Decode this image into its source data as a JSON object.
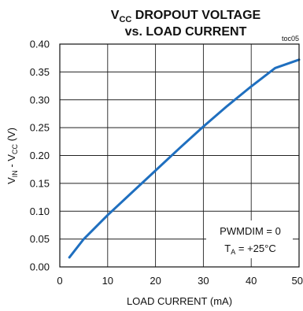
{
  "chart_data": {
    "type": "line",
    "title_line1_main": "V",
    "title_line1_sub": "CC",
    "title_line1_rest": " DROPOUT VOLTAGE",
    "title_line2": "vs. LOAD CURRENT",
    "figure_code": "toc05",
    "xlabel": "LOAD CURRENT (mA)",
    "ylabel_parts": [
      "V",
      "IN",
      " - V",
      "CC",
      " (V)"
    ],
    "xlim": [
      0,
      50
    ],
    "ylim": [
      0,
      0.4
    ],
    "x_ticks": [
      0,
      10,
      20,
      30,
      40,
      50
    ],
    "y_ticks": [
      0.0,
      0.05,
      0.1,
      0.15,
      0.2,
      0.25,
      0.3,
      0.35,
      0.4
    ],
    "x_tick_labels": [
      "0",
      "10",
      "20",
      "30",
      "40",
      "50"
    ],
    "y_tick_labels": [
      "0.00",
      "0.05",
      "0.10",
      "0.15",
      "0.20",
      "0.25",
      "0.30",
      "0.35",
      "0.40"
    ],
    "grid": true,
    "series": [
      {
        "color": "#1f6fbf",
        "x": [
          2,
          5,
          10,
          15,
          20,
          25,
          30,
          35,
          40,
          45,
          50
        ],
        "y": [
          0.017,
          0.05,
          0.093,
          0.133,
          0.173,
          0.213,
          0.252,
          0.289,
          0.324,
          0.357,
          0.372
        ]
      }
    ],
    "annotation": {
      "line1": "PWMDIM = 0",
      "line2_main": "T",
      "line2_sub": "A",
      "line2_rest": " = +25°C"
    }
  }
}
